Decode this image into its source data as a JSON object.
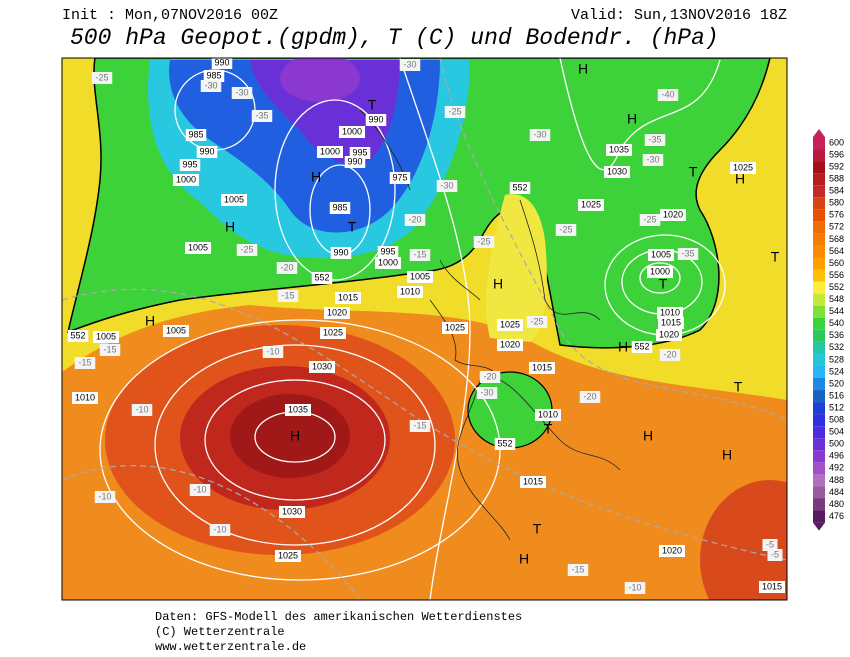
{
  "header": {
    "init": "Init : Mon,07NOV2016 00Z",
    "valid": "Valid: Sun,13NOV2016 18Z",
    "title": "500 hPa Geopot.(gpdm), T (C) und Bodendr. (hPa)"
  },
  "colorbar": {
    "levels": [
      600,
      596,
      592,
      588,
      584,
      580,
      576,
      572,
      568,
      564,
      560,
      556,
      552,
      548,
      544,
      540,
      536,
      532,
      528,
      524,
      520,
      516,
      512,
      508,
      504,
      500,
      496,
      492,
      488,
      484,
      480,
      476
    ],
    "colors": [
      "#c8205a",
      "#b71c3c",
      "#a50f1a",
      "#b41e1e",
      "#c62828",
      "#d84315",
      "#e65100",
      "#ef6c00",
      "#f57c00",
      "#fb8c00",
      "#ffa000",
      "#ffc107",
      "#ffeb3b",
      "#c6e83b",
      "#7ee03a",
      "#3ed23a",
      "#2ec85a",
      "#26c6a0",
      "#26c6da",
      "#29b6f6",
      "#1e88e5",
      "#1565c0",
      "#1e40d8",
      "#3030e0",
      "#4a2ee0",
      "#6a30d8",
      "#8a38d0",
      "#a050c8",
      "#b070c0",
      "#9a5aa0",
      "#7a3a80",
      "#5a1a60"
    ]
  },
  "map": {
    "labels": [
      "H",
      "H",
      "H",
      "H",
      "H",
      "H",
      "H",
      "H",
      "H",
      "H",
      "H",
      "H",
      "T",
      "T",
      "T",
      "T",
      "T",
      "T",
      "T",
      "T",
      "1035",
      "1030",
      "1030",
      "1025",
      "1025",
      "1020",
      "1015",
      "1010",
      "1005",
      "1000",
      "995",
      "990",
      "985",
      "1000",
      "995",
      "990",
      "985",
      "985",
      "990",
      "1000",
      "1000",
      "995",
      "990",
      "990",
      "975",
      "1005",
      "1005",
      "1005",
      "1005",
      "1010",
      "1025",
      "1025",
      "1020",
      "1015",
      "1010",
      "1015",
      "1020",
      "1025",
      "1030",
      "1035",
      "1020",
      "1005",
      "1000",
      "1010",
      "1015",
      "1020",
      "1025",
      "1015",
      "-25",
      "-30",
      "-30",
      "-35",
      "-30",
      "-25",
      "-30",
      "-25",
      "-35",
      "-30",
      "-40",
      "-25",
      "-20",
      "-20",
      "-15",
      "-15",
      "-15",
      "-15",
      "-10",
      "-10",
      "-10",
      "-10",
      "-10",
      "-15",
      "-20",
      "-30",
      "-25",
      "-20",
      "-20",
      "-15",
      "-10",
      "-5",
      "-5",
      "-35",
      "-25",
      "-30",
      "-25",
      "552",
      "552",
      "552",
      "552",
      "552"
    ]
  },
  "footer": {
    "lines": [
      "Daten: GFS-Modell des amerikanischen Wetterdienstes",
      "(C) Wetterzentrale",
      "www.wetterzentrale.de"
    ]
  }
}
